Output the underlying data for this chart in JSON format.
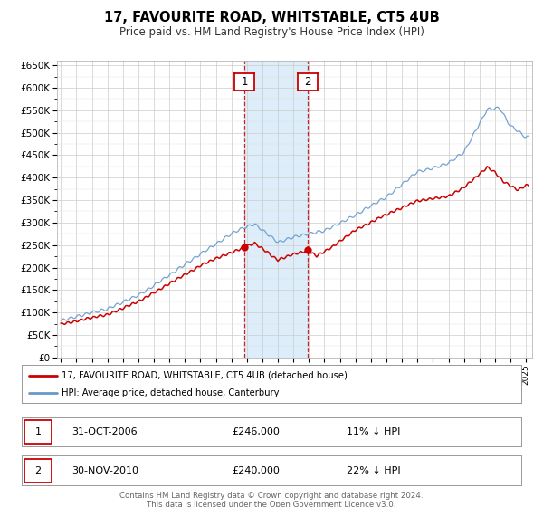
{
  "title": "17, FAVOURITE ROAD, WHITSTABLE, CT5 4UB",
  "subtitle": "Price paid vs. HM Land Registry's House Price Index (HPI)",
  "hpi_color": "#6699cc",
  "price_color": "#cc0000",
  "sale1_price": 246000,
  "sale2_price": 240000,
  "ylim": [
    0,
    660000
  ],
  "xlim_start": 1994.75,
  "xlim_end": 2025.4,
  "legend_line1": "17, FAVOURITE ROAD, WHITSTABLE, CT5 4UB (detached house)",
  "legend_line2": "HPI: Average price, detached house, Canterbury",
  "table_row1_label": "1",
  "table_row1_date": "31-OCT-2006",
  "table_row1_price": "£246,000",
  "table_row1_hpi": "11% ↓ HPI",
  "table_row2_label": "2",
  "table_row2_date": "30-NOV-2010",
  "table_row2_price": "£240,000",
  "table_row2_hpi": "22% ↓ HPI",
  "footer_line1": "Contains HM Land Registry data © Crown copyright and database right 2024.",
  "footer_line2": "This data is licensed under the Open Government Licence v3.0."
}
